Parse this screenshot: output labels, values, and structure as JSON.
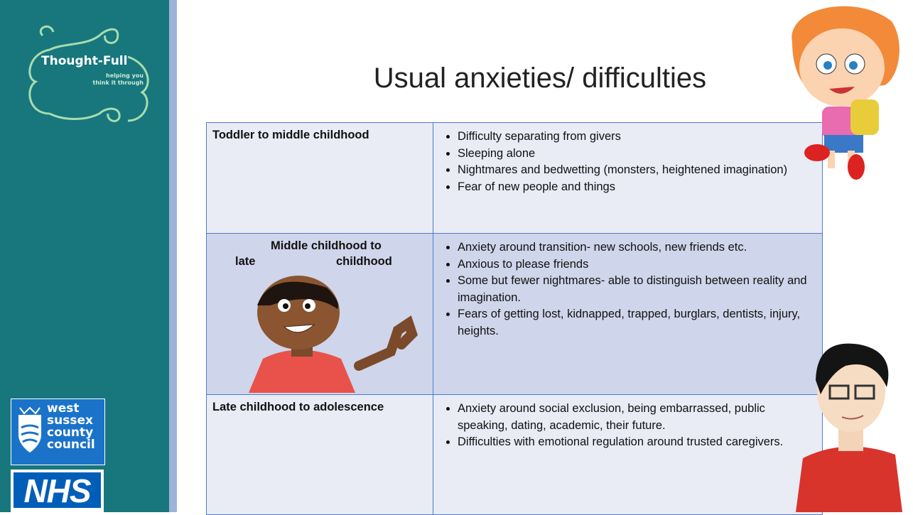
{
  "logo": {
    "name": "Thought-Full",
    "tagline_lines": [
      "helping you",
      "think it through"
    ]
  },
  "title": "Usual anxieties/ difficulties",
  "table": {
    "rows": [
      {
        "stage_lines": [
          "Toddler to middle childhood"
        ],
        "items": [
          "Difficulty separating from givers",
          "Sleeping alone",
          "Nightmares and bedwetting (monsters, heightened imagination)",
          "Fear of new people and things"
        ]
      },
      {
        "stage_lines": [
          "Middle childhood to",
          "late",
          "childhood"
        ],
        "items": [
          "Anxiety around transition- new schools, new friends etc.",
          "Anxious to please friends",
          "Some but fewer nightmares- able to distinguish between reality and imagination.",
          "Fears of getting lost, kidnapped, trapped, burglars, dentists, injury, heights."
        ]
      },
      {
        "stage_lines": [
          "Late childhood to adolescence"
        ],
        "items": [
          "Anxiety around social exclusion, being embarrassed, public speaking, dating, academic, their future.",
          "Difficulties with emotional regulation around trusted caregivers."
        ]
      }
    ]
  },
  "sponsors": {
    "council_lines": [
      "west",
      "sussex",
      "county",
      "council"
    ],
    "nhs": "NHS"
  }
}
